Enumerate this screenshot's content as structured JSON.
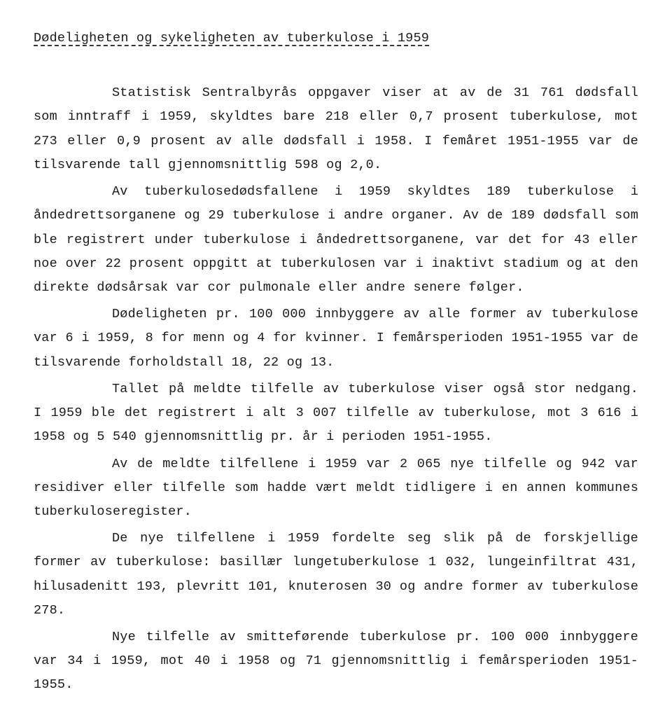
{
  "title": "Dødeligheten og sykeligheten av tuberkulose i 1959",
  "p1": "Statistisk Sentralbyrås oppgaver viser at av de 31 761 dødsfall som inntraff i 1959, skyldtes bare 218  eller 0,7 prosent tuberkulose, mot 273 eller 0,9 prosent av alle dødsfall i 1958.  I femåret 1951-1955 var de tilsvarende tall gjennomsnittlig 598 og 2,0.",
  "p2": "Av tuberkulosedødsfallene i 1959 skyldtes 189 tuberkulose i åndedrettsorganene og 29 tuberkulose i andre organer.  Av de 189 dødsfall som ble registrert under tuberkulose i åndedrettsorganene, var det for 43  eller noe over 22 prosent oppgitt at tuberkulosen var i inaktivt stadium  og at den direkte dødsårsak var cor pulmonale eller andre senere følger.",
  "p3": "Dødeligheten pr. 100 000 innbyggere av alle former av tuberkulose var 6 i 1959, 8 for menn og 4 for kvinner.  I femårsperioden 1951-1955 var de tilsvarende forholdstall 18, 22 og 13.",
  "p4": "Tallet på meldte tilfelle av tuberkulose viser også stor nedgang.  I 1959 ble det registrert i alt 3 007 tilfelle av tuberkulose, mot 3 616 i 1958 og 5 540 gjennomsnittlig pr. år i perioden 1951-1955.",
  "p5": "Av de meldte tilfellene i 1959 var 2 065 nye tilfelle  og 942 var residiver eller tilfelle som hadde vært meldt tidligere i en annen kommunes tuberkuloseregister.",
  "p6": "De nye tilfellene i 1959 fordelte seg slik på de forskjellige former av tuberkulose:  basillær lungetuberkulose 1 032,  lungeinfiltrat 431,  hilusadenitt 193,  plevritt 101, knuterosen 30  og andre former av tuberkulose 278.",
  "p7": "Nye tilfelle av smitteførende tuberkulose pr. 100 000 innbyggere var 34 i 1959, mot 40 i 1958 og 71 gjennomsnittlig i femårsperioden 1951-1955."
}
